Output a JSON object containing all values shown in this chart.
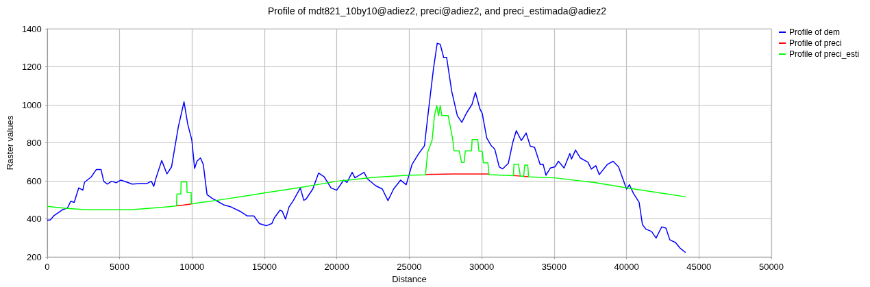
{
  "chart_data": {
    "type": "line",
    "title": "Profile of mdt821_10by10@adiez2, preci@adiez2, and preci_estimada@adiez2",
    "xlabel": "Distance",
    "ylabel": "Raster values",
    "xlim": [
      0,
      50000
    ],
    "xticks": [
      0,
      5000,
      10000,
      15000,
      20000,
      25000,
      30000,
      35000,
      40000,
      45000,
      50000
    ],
    "ylim": [
      200,
      1400
    ],
    "yticks": [
      200,
      400,
      600,
      800,
      1000,
      1200,
      1400
    ],
    "grid": true,
    "legend": "top right",
    "marker": "none",
    "line_style": "solid",
    "series": [
      {
        "name": "Profile of dem",
        "color": "#0000ff",
        "x": [
          0,
          220,
          455,
          1083,
          1400,
          1630,
          1867,
          2180,
          2464,
          2574,
          3045,
          3400,
          3720,
          3907,
          4143,
          4457,
          4770,
          5085,
          5480,
          5870,
          6420,
          6890,
          7200,
          7360,
          7520,
          7910,
          8270,
          8590,
          8770,
          9060,
          9270,
          9450,
          9710,
          9990,
          10180,
          10340,
          10590,
          10780,
          11040,
          11360,
          11750,
          12220,
          12690,
          13320,
          13800,
          14270,
          14660,
          15130,
          15520,
          15680,
          16080,
          16230,
          16460,
          16700,
          17010,
          17480,
          17720,
          17870,
          18340,
          18740,
          19130,
          19600,
          19990,
          20470,
          20700,
          21060,
          21250,
          21880,
          22120,
          22670,
          23140,
          23530,
          23920,
          24400,
          24790,
          25190,
          25660,
          26050,
          26270,
          26670,
          26930,
          27140,
          27380,
          27580,
          27930,
          28320,
          28630,
          28940,
          29330,
          29570,
          29880,
          30040,
          30350,
          30660,
          30900,
          31210,
          31450,
          31840,
          32150,
          32390,
          32740,
          33070,
          33360,
          33650,
          34040,
          34240,
          34440,
          34750,
          35060,
          35300,
          35690,
          36090,
          36200,
          36480,
          36800,
          37340,
          37570,
          37880,
          38120,
          38670,
          39070,
          39450,
          40000,
          40200,
          40480,
          40870,
          41100,
          41340,
          41730,
          42040,
          42430,
          42720,
          42990,
          43380,
          43690,
          44080
        ],
        "values": [
          393,
          395,
          416,
          449,
          457,
          493,
          487,
          563,
          551,
          592,
          621,
          660,
          660,
          598,
          583,
          598,
          590,
          604,
          594,
          583,
          586,
          586,
          598,
          571,
          616,
          707,
          637,
          674,
          756,
          885,
          955,
          1016,
          897,
          815,
          665,
          703,
          721,
          686,
          528,
          510,
          493,
          473,
          463,
          440,
          416,
          416,
          375,
          364,
          376,
          405,
          446,
          440,
          399,
          463,
          498,
          563,
          498,
          504,
          557,
          641,
          621,
          563,
          551,
          604,
          592,
          645,
          616,
          645,
          610,
          575,
          557,
          496,
          557,
          604,
          580,
          686,
          744,
          785,
          932,
          1189,
          1324,
          1318,
          1248,
          1250,
          1072,
          943,
          908,
          955,
          1002,
          1066,
          978,
          955,
          826,
          785,
          768,
          674,
          663,
          692,
          803,
          864,
          812,
          852,
          782,
          777,
          686,
          688,
          630,
          668,
          674,
          703,
          668,
          744,
          715,
          762,
          721,
          698,
          662,
          680,
          633,
          686,
          703,
          674,
          557,
          580,
          534,
          487,
          370,
          346,
          334,
          299,
          358,
          352,
          290,
          276,
          247,
          223
        ]
      },
      {
        "name": "Profile of preci",
        "color": "#ff0000",
        "x": [
          8930,
          9450,
          9960,
          18000,
          26120,
          28000,
          30510,
          31500,
          32190,
          32700,
          33240
        ],
        "values": [
          469,
          473,
          479,
          null,
          634,
          636,
          636,
          null,
          628,
          625,
          622
        ]
      },
      {
        "name": "Profile of preci_esti",
        "color": "#00ff00",
        "x": [
          0,
          1240,
          2730,
          5790,
          8300,
          8930,
          8960,
          9230,
          9250,
          9640,
          9660,
          9940,
          9960,
          10650,
          11750,
          13800,
          15200,
          17480,
          19990,
          22510,
          25020,
          26120,
          26270,
          26580,
          26740,
          26900,
          27020,
          27140,
          27250,
          27690,
          28010,
          28090,
          28450,
          28610,
          28790,
          28870,
          29300,
          29340,
          29730,
          29810,
          30040,
          30120,
          30430,
          30510,
          32190,
          32230,
          32540,
          32670,
          32900,
          32970,
          33180,
          33240,
          35040,
          37880,
          40000,
          42590,
          44080
        ],
        "values": [
          466,
          456,
          448,
          448,
          463,
          469,
          531,
          531,
          595,
          595,
          539,
          539,
          479,
          487,
          498,
          522,
          539,
          565,
          598,
          618,
          630,
          632,
          750,
          815,
          943,
          996,
          943,
          996,
          943,
          943,
          815,
          758,
          758,
          697,
          697,
          758,
          758,
          817,
          817,
          756,
          756,
          695,
          695,
          633,
          627,
          688,
          688,
          625,
          624,
          683,
          683,
          621,
          616,
          590,
          563,
          534,
          516
        ]
      }
    ]
  }
}
